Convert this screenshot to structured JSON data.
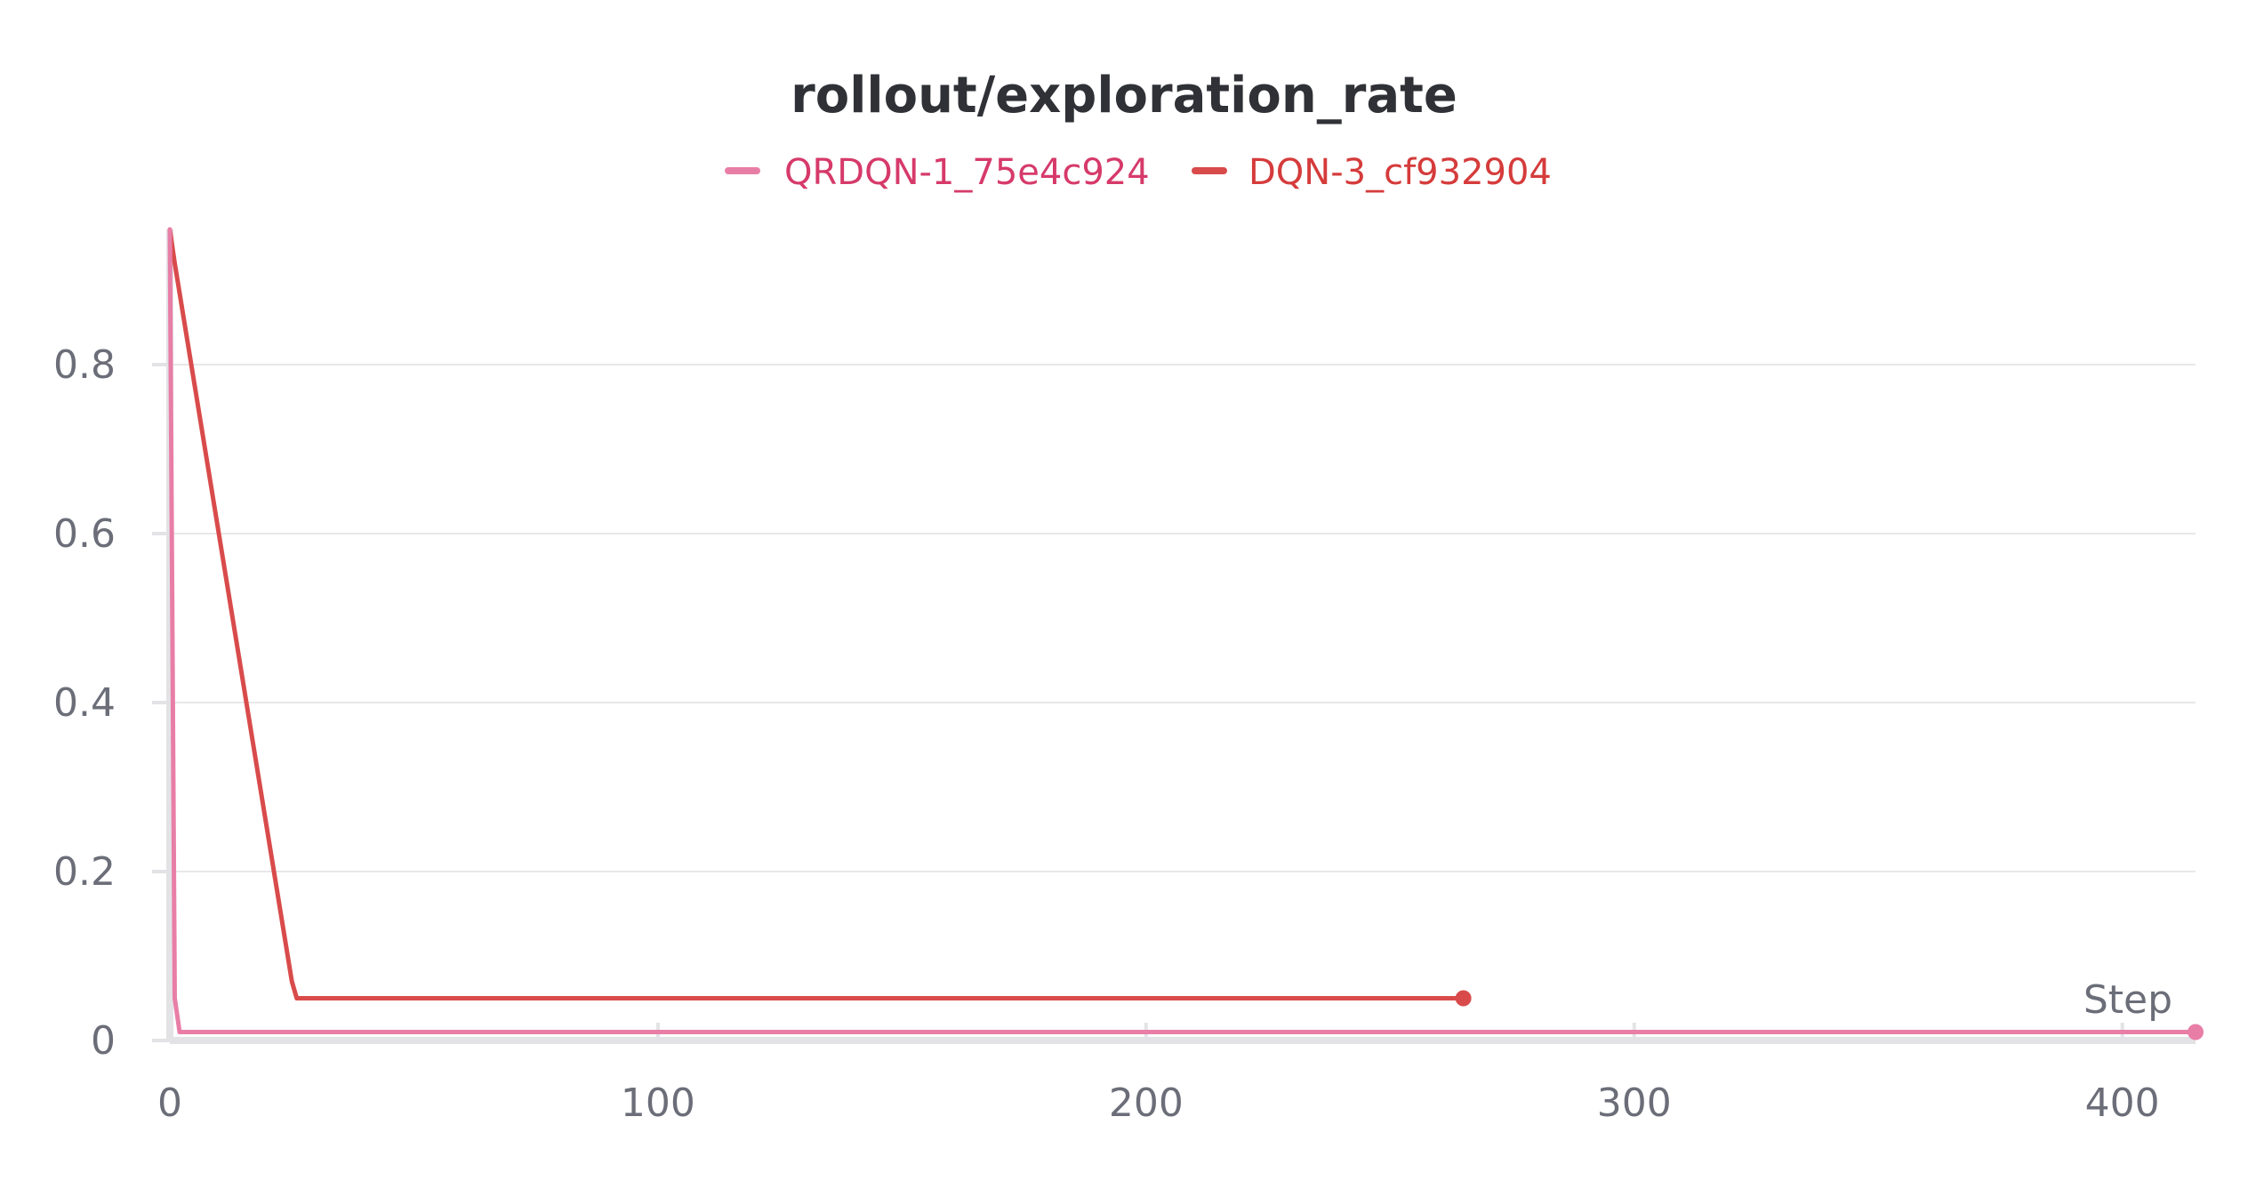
{
  "chart_data": {
    "type": "line",
    "title": "rollout/exploration_rate",
    "xlabel": "Step",
    "ylabel": "",
    "xlim": [
      0,
      415
    ],
    "ylim": [
      0,
      0.96
    ],
    "xticks": [
      0,
      100,
      200,
      300,
      400
    ],
    "xtick_labels": [
      "0",
      "100",
      "200",
      "300",
      "400"
    ],
    "yticks": [
      0,
      0.2,
      0.4,
      0.6,
      0.8
    ],
    "ytick_labels": [
      "0",
      "0.2",
      "0.4",
      "0.6",
      "0.8"
    ],
    "grid": true,
    "legend_position": "top-center",
    "series": [
      {
        "name": "QRDQN-1_75e4c924",
        "color": "#e87ea6",
        "label_color": "#d63a6a",
        "x": [
          0,
          1,
          2,
          415
        ],
        "y": [
          0.96,
          0.05,
          0.01,
          0.01
        ],
        "end_marker": true
      },
      {
        "name": "DQN-3_cf932904",
        "color": "#d94b4b",
        "label_color": "#d53b3b",
        "x": [
          0,
          1,
          25,
          26,
          265
        ],
        "y": [
          0.96,
          0.92,
          0.07,
          0.05,
          0.05
        ],
        "end_marker": true
      }
    ]
  }
}
